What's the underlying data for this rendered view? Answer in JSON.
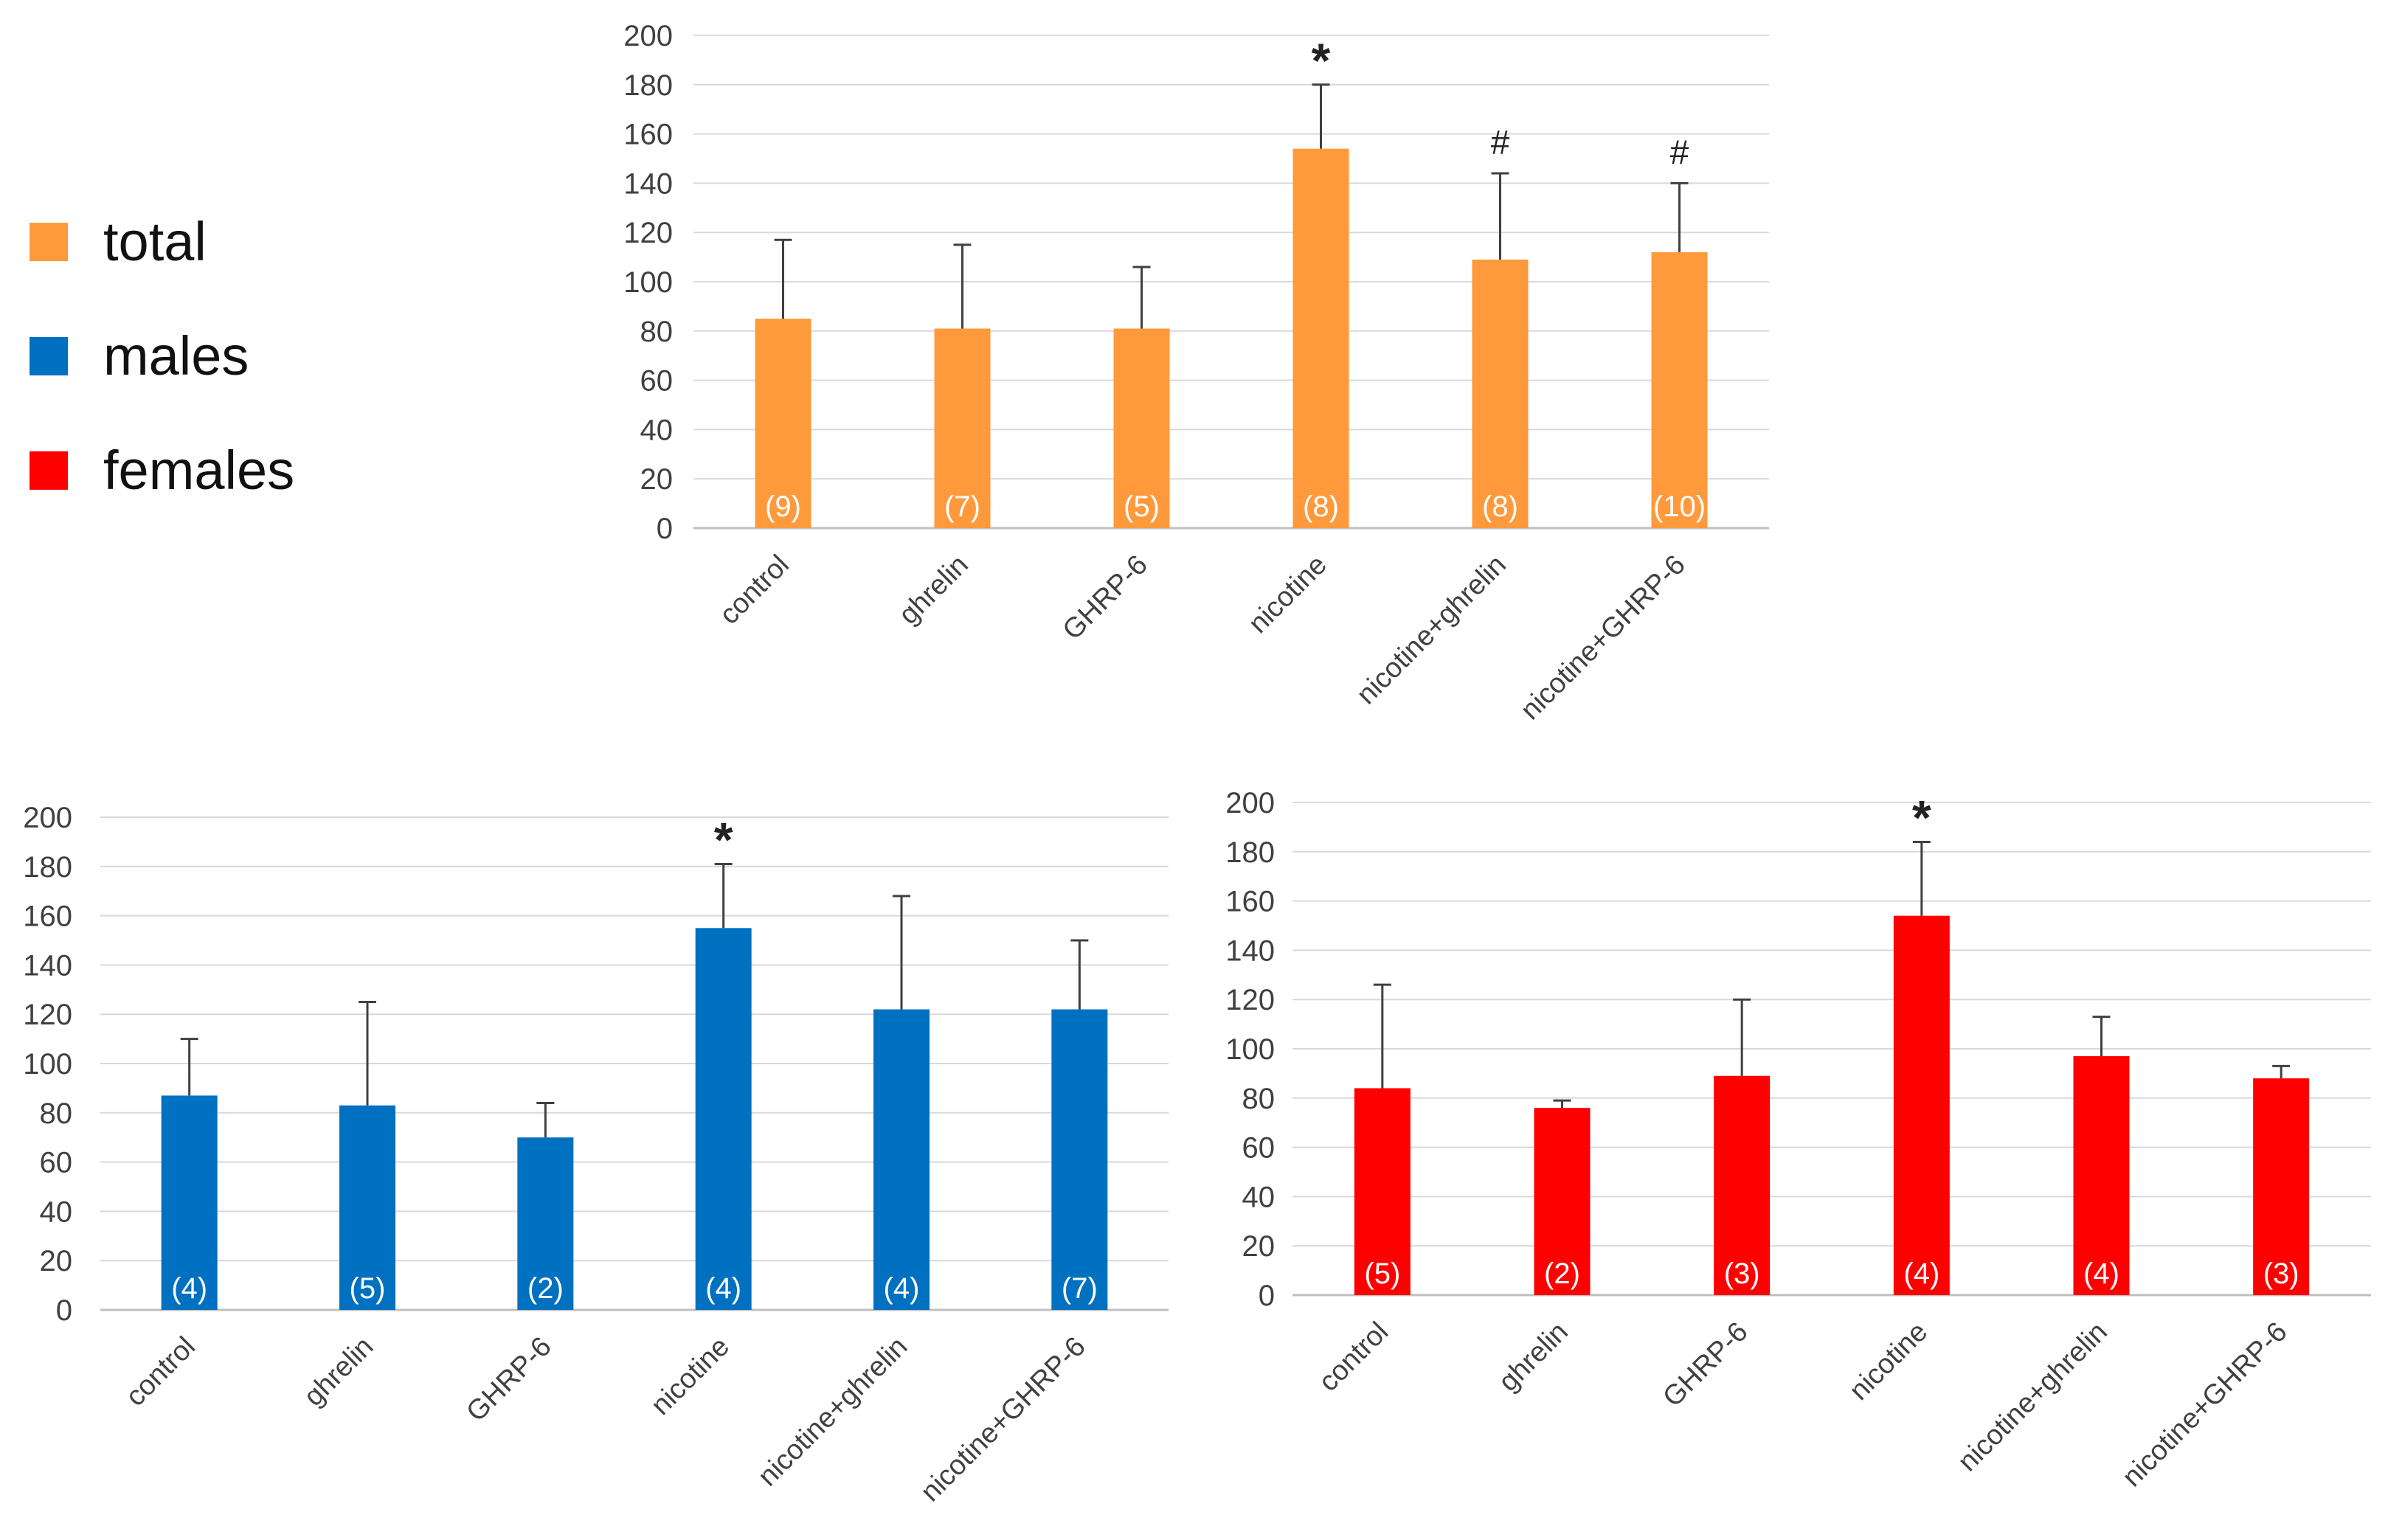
{
  "legend": [
    {
      "label": "total",
      "color": "#FF9A3C"
    },
    {
      "label": "males",
      "color": "#0070C0"
    },
    {
      "label": "females",
      "color": "#FF0000"
    }
  ],
  "chart_data": [
    {
      "name": "total",
      "type": "bar",
      "color": "#FF9A3C",
      "categories": [
        "control",
        "ghrelin",
        "GHRP-6",
        "nicotine",
        "nicotine+ghrelin",
        "nicotine+GHRP-6"
      ],
      "values": [
        85,
        81,
        81,
        154,
        109,
        112
      ],
      "error_upper": [
        117,
        115,
        106,
        180,
        144,
        140
      ],
      "n_labels": [
        "(9)",
        "(7)",
        "(5)",
        "(8)",
        "(8)",
        "(10)"
      ],
      "markers": [
        "",
        "",
        "",
        "*",
        "#",
        "#"
      ],
      "ylim": [
        0,
        200
      ],
      "yticks": [
        0,
        20,
        40,
        60,
        80,
        100,
        120,
        140,
        160,
        180,
        200
      ],
      "grid": true
    },
    {
      "name": "males",
      "type": "bar",
      "color": "#0070C0",
      "categories": [
        "control",
        "ghrelin",
        "GHRP-6",
        "nicotine",
        "nicotine+ghrelin",
        "nicotine+GHRP-6"
      ],
      "values": [
        87,
        83,
        70,
        155,
        122,
        122
      ],
      "error_upper": [
        110,
        125,
        84,
        181,
        168,
        150
      ],
      "n_labels": [
        "(4)",
        "(5)",
        "(2)",
        "(4)",
        "(4)",
        "(7)"
      ],
      "markers": [
        "",
        "",
        "",
        "*",
        "",
        ""
      ],
      "ylim": [
        0,
        200
      ],
      "yticks": [
        0,
        20,
        40,
        60,
        80,
        100,
        120,
        140,
        160,
        180,
        200
      ],
      "grid": true
    },
    {
      "name": "females",
      "type": "bar",
      "color": "#FF0000",
      "categories": [
        "control",
        "ghrelin",
        "GHRP-6",
        "nicotine",
        "nicotine+ghrelin",
        "nicotine+GHRP-6"
      ],
      "values": [
        84,
        76,
        89,
        154,
        97,
        88
      ],
      "error_upper": [
        126,
        79,
        120,
        184,
        113,
        93
      ],
      "n_labels": [
        "(5)",
        "(2)",
        "(3)",
        "(4)",
        "(4)",
        "(3)"
      ],
      "markers": [
        "",
        "",
        "",
        "*",
        "",
        ""
      ],
      "ylim": [
        0,
        200
      ],
      "yticks": [
        0,
        20,
        40,
        60,
        80,
        100,
        120,
        140,
        160,
        180,
        200
      ],
      "grid": true
    }
  ]
}
